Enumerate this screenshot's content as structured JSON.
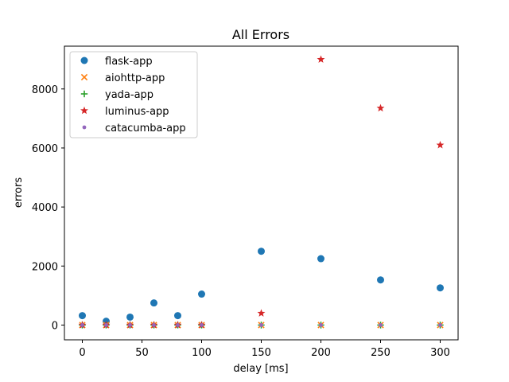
{
  "chart_data": {
    "type": "scatter",
    "title": "All Errors",
    "xlabel": "delay [ms]",
    "ylabel": "errors",
    "xlim": [
      -15,
      315
    ],
    "ylim": [
      -500,
      9450
    ],
    "xticks": [
      0,
      50,
      100,
      150,
      200,
      250,
      300
    ],
    "yticks": [
      0,
      2000,
      4000,
      6000,
      8000
    ],
    "grid": false,
    "legend_position": "upper-left",
    "x": [
      0,
      20,
      40,
      60,
      80,
      100,
      150,
      200,
      250,
      300
    ],
    "series": [
      {
        "name": "flask-app",
        "marker": "circle",
        "color": "#1f77b4",
        "values": [
          320,
          130,
          270,
          750,
          320,
          1050,
          2500,
          2250,
          1530,
          1260
        ]
      },
      {
        "name": "aiohttp-app",
        "marker": "x",
        "color": "#ff7f0e",
        "values": [
          0,
          0,
          0,
          0,
          0,
          0,
          0,
          0,
          0,
          0
        ]
      },
      {
        "name": "yada-app",
        "marker": "plus",
        "color": "#2ca02c",
        "values": [
          0,
          0,
          0,
          0,
          0,
          0,
          0,
          0,
          0,
          0
        ]
      },
      {
        "name": "luminus-app",
        "marker": "star",
        "color": "#d62728",
        "values": [
          0,
          0,
          0,
          0,
          0,
          0,
          400,
          9000,
          7350,
          6100
        ]
      },
      {
        "name": "catacumba-app",
        "marker": "dot",
        "color": "#9467bd",
        "values": [
          0,
          0,
          0,
          0,
          0,
          0,
          0,
          0,
          0,
          0
        ]
      }
    ]
  }
}
